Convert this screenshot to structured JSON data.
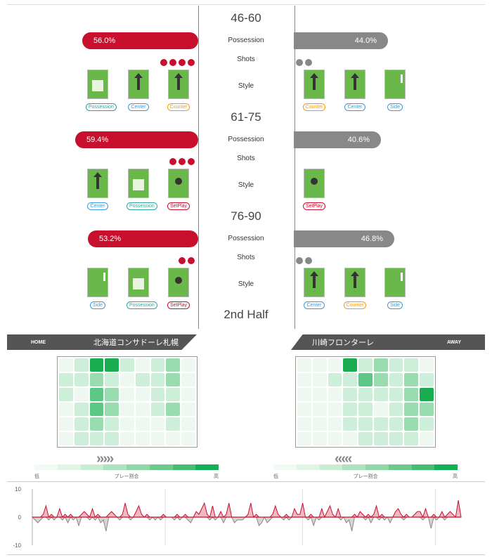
{
  "periods": [
    {
      "title": "46-60",
      "home_possession": "56.0%",
      "away_possession": "44.0%",
      "home_poss_value": 56.0,
      "away_poss_value": 44.0,
      "home_shots": 4,
      "away_shots": 2,
      "home_styles": [
        {
          "label": "Possession",
          "color": "teal",
          "icon": "possession-pitch-icon"
        },
        {
          "label": "Center",
          "color": "blue",
          "icon": "center-arrow-pitch-icon"
        },
        {
          "label": "Counter",
          "color": "orange",
          "icon": "counter-arrow-pitch-icon"
        }
      ],
      "away_styles": [
        {
          "label": "Counter",
          "color": "orange",
          "icon": "counter-arrow-pitch-icon"
        },
        {
          "label": "Center",
          "color": "blue",
          "icon": "center-arrow-pitch-icon"
        },
        {
          "label": "Side",
          "color": "blue",
          "icon": "side-pitch-icon"
        }
      ]
    },
    {
      "title": "61-75",
      "home_possession": "59.4%",
      "away_possession": "40.6%",
      "home_poss_value": 59.4,
      "away_poss_value": 40.6,
      "home_shots": 3,
      "away_shots": 0,
      "home_styles": [
        {
          "label": "Center",
          "color": "blue",
          "icon": "center-arrow-pitch-icon"
        },
        {
          "label": "Possession",
          "color": "teal",
          "icon": "possession-pitch-icon"
        },
        {
          "label": "SetPlay",
          "color": "red",
          "icon": "setplay-ball-pitch-icon"
        }
      ],
      "away_styles": [
        {
          "label": "SetPlay",
          "color": "red",
          "icon": "setplay-ball-pitch-icon"
        }
      ]
    },
    {
      "title": "76-90",
      "home_possession": "53.2%",
      "away_possession": "46.8%",
      "home_poss_value": 53.2,
      "away_poss_value": 46.8,
      "home_shots": 2,
      "away_shots": 2,
      "home_styles": [
        {
          "label": "Side",
          "color": "blue",
          "icon": "side-pitch-icon"
        },
        {
          "label": "Possession",
          "color": "teal",
          "icon": "possession-pitch-icon"
        },
        {
          "label": "SetPlay",
          "color": "red",
          "icon": "setplay-ball-pitch-icon"
        }
      ],
      "away_styles": [
        {
          "label": "Center",
          "color": "blue",
          "icon": "center-arrow-pitch-icon"
        },
        {
          "label": "Counter",
          "color": "orange",
          "icon": "counter-arrow-pitch-icon"
        },
        {
          "label": "Side",
          "color": "blue",
          "icon": "side-pitch-icon"
        }
      ]
    }
  ],
  "labels": {
    "possession": "Possession",
    "shots": "Shots",
    "style": "Style"
  },
  "half_title": "2nd Half",
  "home": {
    "tag": "HOME",
    "team": "北海道コンサドーレ札幌"
  },
  "away": {
    "tag": "AWAY",
    "team": "川崎フロンターレ"
  },
  "legend": {
    "low": "低",
    "mid": "プレー割合",
    "high": "高"
  },
  "chevrons": {
    "home": "›››››",
    "away": "‹‹‹‹‹"
  },
  "colors": {
    "home": "#c8102e",
    "away": "#888888",
    "heat_high": "#00b050",
    "heat_low": "#eaf7ee"
  },
  "heatmap_home": [
    [
      1,
      2,
      5,
      5,
      2,
      1,
      2,
      3,
      1
    ],
    [
      2,
      2,
      3,
      2,
      1,
      2,
      2,
      3,
      1
    ],
    [
      2,
      1,
      4,
      3,
      1,
      1,
      2,
      2,
      1
    ],
    [
      1,
      2,
      4,
      3,
      1,
      1,
      2,
      3,
      1
    ],
    [
      1,
      2,
      3,
      2,
      1,
      1,
      1,
      2,
      1
    ],
    [
      1,
      2,
      2,
      2,
      1,
      1,
      1,
      1,
      1
    ]
  ],
  "heatmap_away": [
    [
      1,
      1,
      1,
      5,
      2,
      3,
      2,
      2,
      1
    ],
    [
      1,
      1,
      2,
      2,
      4,
      3,
      2,
      3,
      2
    ],
    [
      1,
      1,
      1,
      2,
      2,
      2,
      2,
      3,
      5
    ],
    [
      1,
      1,
      1,
      2,
      2,
      1,
      2,
      3,
      3
    ],
    [
      1,
      1,
      1,
      2,
      2,
      2,
      2,
      3,
      2
    ],
    [
      1,
      1,
      1,
      1,
      2,
      2,
      2,
      2,
      1
    ]
  ],
  "chart_data": {
    "type": "area",
    "ylim": [
      -10,
      10
    ],
    "yticks": [
      "10",
      "0",
      "-10"
    ],
    "values": [
      0,
      -1,
      -2,
      -1,
      1,
      4,
      -1,
      1,
      -1,
      0,
      3,
      -1,
      1,
      -2,
      1,
      -1,
      0,
      -3,
      1,
      2,
      1,
      -1,
      3,
      -1,
      1,
      -2,
      -1,
      -5,
      1,
      2,
      1,
      0,
      -1,
      1,
      5,
      1,
      -1,
      0,
      2,
      4,
      1,
      0,
      1,
      -1,
      0,
      -1,
      0,
      -1,
      1,
      0,
      0,
      0,
      -1,
      1,
      -1,
      0,
      1,
      -1,
      -2,
      0,
      2,
      1,
      3,
      5,
      1,
      -1,
      4,
      -1,
      0,
      2,
      -2,
      1,
      5,
      0,
      -2,
      -1,
      -1,
      -1,
      0,
      1,
      5,
      0,
      1,
      -3,
      -2,
      0,
      -2,
      -1,
      1,
      4,
      1,
      0,
      -1,
      1,
      -1,
      0,
      3,
      1,
      1,
      5,
      0,
      -1,
      1,
      -3,
      0,
      -1,
      3,
      0,
      2,
      4,
      1,
      0,
      3,
      -1,
      0,
      -2,
      -1,
      -5,
      1,
      0,
      2,
      1,
      -1,
      1,
      -2,
      1,
      4,
      -1,
      1,
      -1,
      0,
      -2,
      0,
      2,
      3,
      1,
      -1,
      1,
      0,
      0,
      1,
      2,
      2,
      -1,
      3,
      0,
      -4,
      1,
      -1,
      0,
      2,
      -1,
      1,
      2,
      1,
      0,
      6,
      0
    ]
  }
}
